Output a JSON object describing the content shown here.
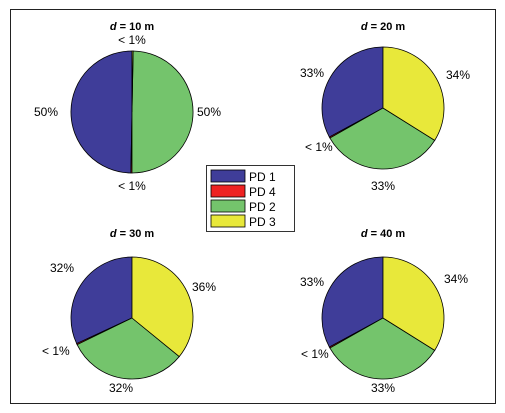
{
  "chart_data": [
    {
      "type": "pie",
      "title": "d = 10 m",
      "title_var": "d",
      "title_rest": " = 10 m",
      "categories": [
        "PD 1",
        "PD 4",
        "PD 2",
        "PD 3"
      ],
      "values": [
        49.7,
        0.3,
        49.7,
        0.3
      ],
      "labels": [
        "50%",
        "< 1%",
        "50%",
        "< 1%"
      ]
    },
    {
      "type": "pie",
      "title": "d = 20 m",
      "title_var": "d",
      "title_rest": " = 20 m",
      "categories": [
        "PD 1",
        "PD 4",
        "PD 2",
        "PD 3"
      ],
      "values": [
        33,
        0.3,
        33,
        34
      ],
      "labels": [
        "33%",
        "< 1%",
        "33%",
        "34%"
      ]
    },
    {
      "type": "pie",
      "title": "d = 30 m",
      "title_var": "d",
      "title_rest": " = 30 m",
      "categories": [
        "PD 1",
        "PD 4",
        "PD 2",
        "PD 3"
      ],
      "values": [
        32,
        0.3,
        32,
        36
      ],
      "labels": [
        "32%",
        "< 1%",
        "32%",
        "36%"
      ]
    },
    {
      "type": "pie",
      "title": "d = 40 m",
      "title_var": "d",
      "title_rest": " = 40 m",
      "categories": [
        "PD 1",
        "PD 4",
        "PD 2",
        "PD 3"
      ],
      "values": [
        33,
        0.3,
        33,
        34
      ],
      "labels": [
        "33%",
        "< 1%",
        "33%",
        "34%"
      ]
    }
  ],
  "legend": {
    "placement": "center",
    "entries": [
      {
        "label": "PD 1",
        "color": "#3f3d99"
      },
      {
        "label": "PD 4",
        "color": "#ee2222"
      },
      {
        "label": "PD 2",
        "color": "#74c46c"
      },
      {
        "label": "PD 3",
        "color": "#e8e83a"
      }
    ]
  }
}
